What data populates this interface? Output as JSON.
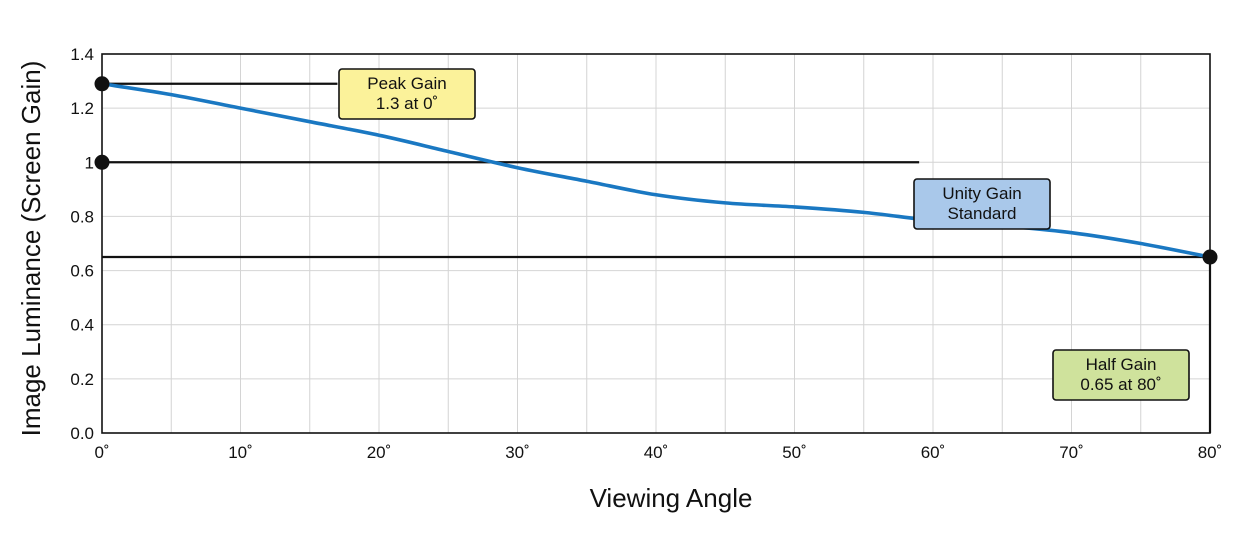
{
  "chart_data": {
    "type": "line",
    "title": "",
    "xlabel": "Viewing Angle",
    "ylabel": "Image Luminance (Screen Gain)",
    "xlim": [
      0,
      80
    ],
    "ylim": [
      0,
      1.4
    ],
    "grid": true,
    "x_ticks": [
      0,
      10,
      20,
      30,
      40,
      50,
      60,
      70,
      80
    ],
    "x_tick_labels": [
      "0˚",
      "10˚",
      "20˚",
      "30˚",
      "40˚",
      "50˚",
      "60˚",
      "70˚",
      "80˚"
    ],
    "y_ticks": [
      0,
      0.2,
      0.4,
      0.6,
      0.8,
      1.0,
      1.2,
      1.4
    ],
    "y_tick_labels": [
      "0.0",
      "0.2",
      "0.4",
      "0.6",
      "0.8",
      "1",
      "1.2",
      "1.4"
    ],
    "x_minor_step": 5,
    "series": [
      {
        "color": "#1a78c2",
        "x": [
          0,
          5,
          10,
          15,
          20,
          25,
          30,
          35,
          40,
          45,
          50,
          55,
          60,
          65,
          70,
          75,
          80
        ],
        "y": [
          1.29,
          1.25,
          1.2,
          1.15,
          1.1,
          1.04,
          0.98,
          0.93,
          0.88,
          0.85,
          0.835,
          0.815,
          0.785,
          0.765,
          0.74,
          0.7,
          0.65
        ]
      }
    ],
    "reference_lines": [
      {
        "id": "peak",
        "y": 1.29,
        "x_start": 0,
        "x_end": 17
      },
      {
        "id": "unity",
        "y": 1.0,
        "x_start": 0,
        "x_end": 59
      },
      {
        "id": "half",
        "y": 0.65,
        "x_start": 0,
        "x_end": 80
      }
    ],
    "markers": [
      {
        "x": 0,
        "y": 1.29
      },
      {
        "x": 0,
        "y": 1.0
      },
      {
        "x": 80,
        "y": 0.65
      }
    ],
    "annotations": [
      {
        "id": "peak",
        "lines": [
          "Peak Gain",
          "1.3 at 0˚"
        ],
        "color": "#fbf29a"
      },
      {
        "id": "unity",
        "lines": [
          "Unity Gain",
          "Standard"
        ],
        "color": "#a9c8ea"
      },
      {
        "id": "half",
        "lines": [
          "Half Gain",
          "0.65 at 80˚"
        ],
        "color": "#cfe29c"
      }
    ]
  }
}
